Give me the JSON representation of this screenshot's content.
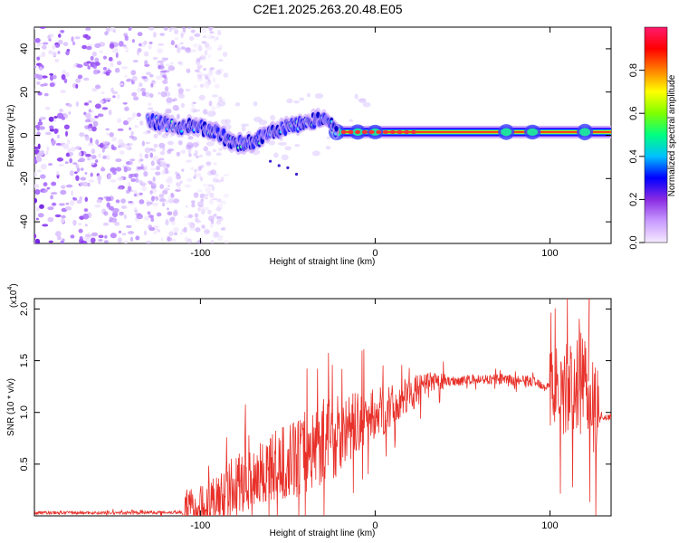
{
  "title": "C2E1.2025.263.20.48.E05",
  "chart_data": [
    {
      "type": "heatmap",
      "name": "spectrogram",
      "xlabel": "Height of straight line (km)",
      "ylabel": "Frequency (Hz)",
      "xlim": [
        -195,
        135
      ],
      "ylim": [
        -50,
        50
      ],
      "xticks": [
        -100,
        0,
        100
      ],
      "xtick_labels": [
        "-100",
        "0",
        "100"
      ],
      "yticks": [
        -40,
        -20,
        0,
        20,
        40
      ],
      "ytick_labels": [
        "-40",
        "-20",
        "0",
        "20",
        "40"
      ],
      "colorbar": {
        "label": "Normalized spectral amplitude",
        "range": [
          0,
          1
        ],
        "ticks": [
          0.0,
          0.2,
          0.4,
          0.6,
          0.8
        ],
        "tick_labels": [
          "0.0",
          "0.2",
          "0.4",
          "0.6",
          "0.8"
        ],
        "colors": [
          "#f6eaff",
          "#c89bff",
          "#8a2be2",
          "#0000ff",
          "#00c0ff",
          "#00ff80",
          "#80ff00",
          "#ffff00",
          "#ff8000",
          "#ff0000",
          "#ff1a6e"
        ]
      },
      "noise_region": {
        "x_range": [
          -195,
          -97
        ],
        "y_range": [
          -50,
          50
        ]
      },
      "ridge": [
        {
          "x": -130,
          "y": 7
        },
        {
          "x": -120,
          "y": 5
        },
        {
          "x": -110,
          "y": 4
        },
        {
          "x": -100,
          "y": 4
        },
        {
          "x": -90,
          "y": 1
        },
        {
          "x": -80,
          "y": -4
        },
        {
          "x": -70,
          "y": -3
        },
        {
          "x": -60,
          "y": 1
        },
        {
          "x": -50,
          "y": 4
        },
        {
          "x": -40,
          "y": 6
        },
        {
          "x": -30,
          "y": 8
        },
        {
          "x": -22,
          "y": 2
        },
        {
          "x": -10,
          "y": 1
        },
        {
          "x": 0,
          "y": 1
        },
        {
          "x": 20,
          "y": 1
        },
        {
          "x": 50,
          "y": 1
        },
        {
          "x": 80,
          "y": 2
        },
        {
          "x": 100,
          "y": 1
        },
        {
          "x": 120,
          "y": 1
        },
        {
          "x": 135,
          "y": 1
        }
      ],
      "band_center_hz": 1.5,
      "band_start_km": -22
    },
    {
      "type": "line",
      "name": "snr",
      "xlabel": "Height of straight line (km)",
      "ylabel": "SNR (10 * v/v)",
      "y_multiplier_label": "(x10",
      "y_multiplier_exp": "4",
      "line_color": "#e8312a",
      "xlim": [
        -195,
        135
      ],
      "ylim": [
        0,
        21000
      ],
      "xticks": [
        -100,
        0,
        100
      ],
      "xtick_labels": [
        "-100",
        "0",
        "100"
      ],
      "yticks": [
        5000,
        10000,
        15000,
        20000
      ],
      "ytick_labels": [
        "0.5",
        "1.0",
        "1.5",
        "2.0"
      ],
      "series": [
        {
          "name": "SNR",
          "x": [
            -195,
            -150,
            -110,
            -100,
            -90,
            -80,
            -70,
            -60,
            -50,
            -40,
            -30,
            -20,
            -10,
            0,
            10,
            20,
            30,
            40,
            50,
            60,
            70,
            80,
            90,
            100,
            110,
            115,
            120,
            125,
            130,
            135
          ],
          "values": [
            300,
            300,
            350,
            600,
            1500,
            3000,
            3800,
            4500,
            5200,
            6000,
            7300,
            8000,
            9000,
            9800,
            10500,
            11800,
            12600,
            13000,
            13100,
            13200,
            13200,
            13100,
            13000,
            12500,
            12200,
            12500,
            14000,
            10000,
            9500,
            9500
          ]
        }
      ]
    }
  ]
}
